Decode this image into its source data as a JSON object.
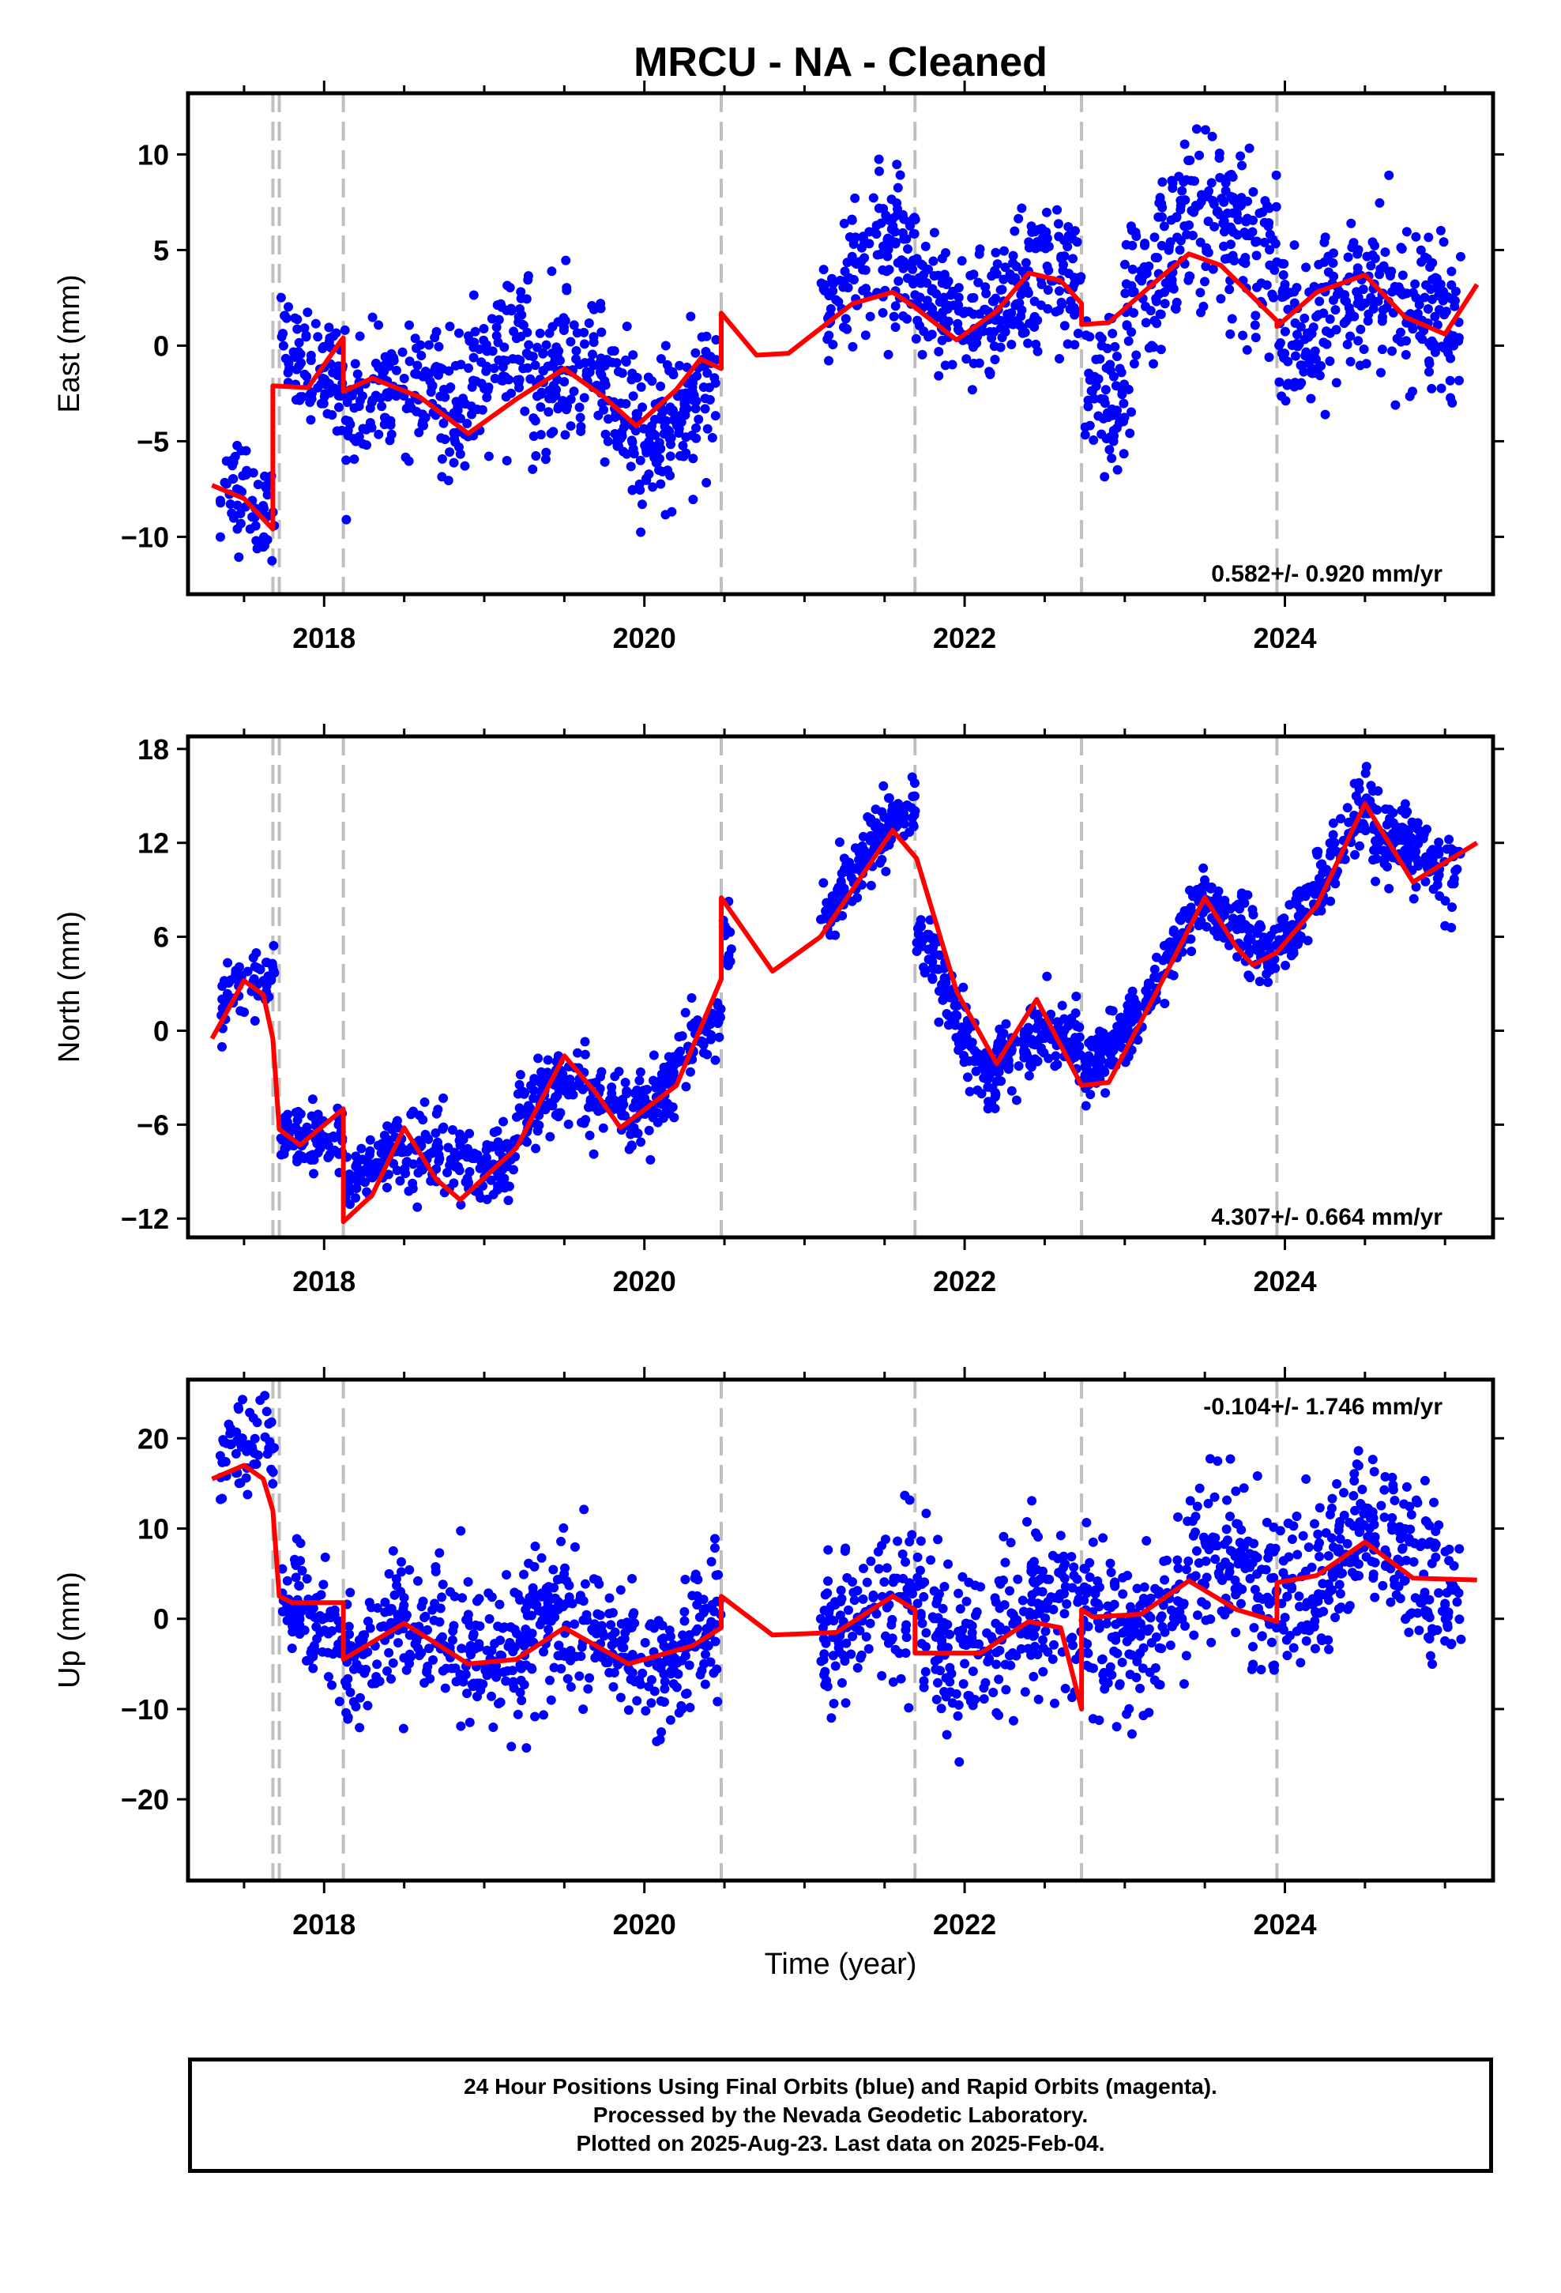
{
  "colors": {
    "data_points": "#0000ff",
    "model_fit": "#ff0000",
    "break_lines": "#bfbfbf",
    "frame": "#000000"
  },
  "chart_data": {
    "type": "scatter",
    "title": "MRCU  - NA - Cleaned",
    "xlabel": "Time (year)",
    "x_ticks": [
      "2018",
      "2020",
      "2022",
      "2024"
    ],
    "xlim": [
      2017.15,
      2025.3
    ],
    "break_years": [
      2017.68,
      2017.72,
      2018.12,
      2020.48,
      2021.69,
      2022.73,
      2023.95
    ],
    "panels": [
      {
        "name": "East",
        "ylabel": "East (mm)",
        "ylim": [
          -13,
          13.2
        ],
        "y_ticks": [
          -10,
          -5,
          0,
          5,
          10
        ],
        "rate": "0.582+/- 0.920 mm/yr",
        "rate_position": "bottom-right",
        "fit": [
          [
            2017.3,
            -7.3
          ],
          [
            2017.5,
            -8.0
          ],
          [
            2017.68,
            -9.6
          ],
          [
            2017.68,
            -2.1
          ],
          [
            2017.9,
            -2.2
          ],
          [
            2018.1,
            0.2
          ],
          [
            2018.12,
            0.4
          ],
          [
            2018.12,
            -2.4
          ],
          [
            2018.3,
            -1.7
          ],
          [
            2018.6,
            -2.7
          ],
          [
            2018.9,
            -4.6
          ],
          [
            2019.2,
            -2.8
          ],
          [
            2019.5,
            -1.2
          ],
          [
            2019.75,
            -2.7
          ],
          [
            2019.95,
            -4.2
          ],
          [
            2020.2,
            -2.3
          ],
          [
            2020.35,
            -0.7
          ],
          [
            2020.48,
            -1.2
          ],
          [
            2020.48,
            1.7
          ],
          [
            2020.7,
            -0.5
          ],
          [
            2020.9,
            -0.4
          ],
          [
            2021.3,
            2.2
          ],
          [
            2021.55,
            2.8
          ],
          [
            2021.69,
            2.0
          ],
          [
            2021.95,
            0.3
          ],
          [
            2022.2,
            1.8
          ],
          [
            2022.4,
            3.8
          ],
          [
            2022.6,
            3.4
          ],
          [
            2022.73,
            2.2
          ],
          [
            2022.73,
            1.1
          ],
          [
            2022.9,
            1.2
          ],
          [
            2023.2,
            3.4
          ],
          [
            2023.4,
            4.8
          ],
          [
            2023.6,
            4.2
          ],
          [
            2023.95,
            1.3
          ],
          [
            2023.95,
            1.0
          ],
          [
            2024.2,
            2.8
          ],
          [
            2024.5,
            3.7
          ],
          [
            2024.75,
            1.5
          ],
          [
            2025.0,
            0.6
          ],
          [
            2025.2,
            3.2
          ]
        ],
        "segments": [
          {
            "x0": 2017.35,
            "x1": 2017.69,
            "base": -8.0,
            "slope": -4.5,
            "noise": 1.8,
            "n": 60
          },
          {
            "x0": 2017.73,
            "x1": 2018.12,
            "base": -0.8,
            "slope": 1.0,
            "noise": 1.7,
            "n": 90
          },
          {
            "x0": 2018.13,
            "x1": 2018.9,
            "base": -2.5,
            "slope": -1.6,
            "noise": 2.0,
            "n": 170
          },
          {
            "x0": 2018.9,
            "x1": 2019.3,
            "base": -0.5,
            "slope": 4.0,
            "noise": 2.3,
            "n": 90
          },
          {
            "x0": 2019.3,
            "x1": 2020.45,
            "base": -3.0,
            "slope": 0.0,
            "noise": 2.4,
            "n": 320
          },
          {
            "x0": 2021.1,
            "x1": 2021.7,
            "base": 3.8,
            "slope": -0.5,
            "noise": 2.4,
            "n": 150
          },
          {
            "x0": 2021.7,
            "x1": 2022.73,
            "base": 2.2,
            "slope": 0.5,
            "noise": 2.2,
            "n": 260
          },
          {
            "x0": 2022.74,
            "x1": 2023.0,
            "base": -2.8,
            "slope": 3.0,
            "noise": 2.6,
            "n": 70
          },
          {
            "x0": 2023.0,
            "x1": 2023.95,
            "base": 4.5,
            "slope": 1.0,
            "noise": 2.8,
            "n": 240
          },
          {
            "x0": 2023.96,
            "x1": 2025.1,
            "base": 2.0,
            "slope": 0.0,
            "noise": 2.6,
            "n": 280
          }
        ]
      },
      {
        "name": "North",
        "ylabel": "North (mm)",
        "ylim": [
          -13.2,
          18.8
        ],
        "y_ticks": [
          -12,
          -6,
          0,
          6,
          12,
          18
        ],
        "rate": "4.307+/- 0.664 mm/yr",
        "rate_position": "bottom-right",
        "fit": [
          [
            2017.3,
            -0.5
          ],
          [
            2017.5,
            3.2
          ],
          [
            2017.62,
            2.3
          ],
          [
            2017.68,
            -0.5
          ],
          [
            2017.72,
            -6.3
          ],
          [
            2017.85,
            -7.3
          ],
          [
            2018.12,
            -5.0
          ],
          [
            2018.12,
            -12.2
          ],
          [
            2018.3,
            -10.5
          ],
          [
            2018.5,
            -6.2
          ],
          [
            2018.7,
            -9.5
          ],
          [
            2018.85,
            -10.8
          ],
          [
            2019.2,
            -7.5
          ],
          [
            2019.5,
            -1.6
          ],
          [
            2019.7,
            -4.0
          ],
          [
            2019.85,
            -6.2
          ],
          [
            2020.2,
            -3.5
          ],
          [
            2020.48,
            3.3
          ],
          [
            2020.48,
            8.5
          ],
          [
            2020.8,
            3.8
          ],
          [
            2021.1,
            6.0
          ],
          [
            2021.55,
            12.8
          ],
          [
            2021.7,
            11.0
          ],
          [
            2021.95,
            2.5
          ],
          [
            2022.2,
            -2.1
          ],
          [
            2022.45,
            2.0
          ],
          [
            2022.73,
            -3.5
          ],
          [
            2022.9,
            -3.3
          ],
          [
            2023.2,
            2.5
          ],
          [
            2023.5,
            8.5
          ],
          [
            2023.7,
            5.3
          ],
          [
            2023.8,
            4.2
          ],
          [
            2023.95,
            5.0
          ],
          [
            2024.2,
            8.0
          ],
          [
            2024.5,
            14.5
          ],
          [
            2024.8,
            9.5
          ],
          [
            2025.2,
            12.0
          ]
        ],
        "segments": [
          {
            "x0": 2017.35,
            "x1": 2017.69,
            "base": 1.5,
            "slope": 3.0,
            "noise": 1.5,
            "n": 60
          },
          {
            "x0": 2017.73,
            "x1": 2018.12,
            "base": -7.0,
            "slope": 3.0,
            "noise": 1.3,
            "n": 90
          },
          {
            "x0": 2018.13,
            "x1": 2019.2,
            "base": -9.0,
            "slope": 1.0,
            "noise": 1.5,
            "n": 240
          },
          {
            "x0": 2019.2,
            "x1": 2019.9,
            "base": -4.5,
            "slope": 0.0,
            "noise": 1.5,
            "n": 160
          },
          {
            "x0": 2019.9,
            "x1": 2020.48,
            "base": -5.0,
            "slope": 10.0,
            "noise": 1.4,
            "n": 130
          },
          {
            "x0": 2020.49,
            "x1": 2020.55,
            "base": 5.5,
            "slope": 0.0,
            "noise": 1.5,
            "n": 12
          },
          {
            "x0": 2021.1,
            "x1": 2021.7,
            "base": 8.0,
            "slope": 10.0,
            "noise": 1.5,
            "n": 150
          },
          {
            "x0": 2021.7,
            "x1": 2022.2,
            "base": 6.0,
            "slope": -18.0,
            "noise": 1.3,
            "n": 130
          },
          {
            "x0": 2022.2,
            "x1": 2022.73,
            "base": -1.5,
            "slope": 0.5,
            "noise": 1.4,
            "n": 130
          },
          {
            "x0": 2022.74,
            "x1": 2023.5,
            "base": -3.0,
            "slope": 14.5,
            "noise": 1.3,
            "n": 190
          },
          {
            "x0": 2023.5,
            "x1": 2023.95,
            "base": 7.0,
            "slope": -4.0,
            "noise": 1.3,
            "n": 110
          },
          {
            "x0": 2023.96,
            "x1": 2024.55,
            "base": 6.0,
            "slope": 14.0,
            "noise": 1.4,
            "n": 150
          },
          {
            "x0": 2024.55,
            "x1": 2025.1,
            "base": 11.5,
            "slope": 0.0,
            "noise": 1.6,
            "n": 140
          }
        ]
      },
      {
        "name": "Up",
        "ylabel": "Up (mm)",
        "ylim": [
          -29,
          26.5
        ],
        "y_ticks": [
          -20,
          -10,
          0,
          10,
          20
        ],
        "rate": "-0.104+/- 1.746 mm/yr",
        "rate_position": "top-right",
        "fit": [
          [
            2017.3,
            15.5
          ],
          [
            2017.5,
            17.0
          ],
          [
            2017.62,
            15.5
          ],
          [
            2017.68,
            12.0
          ],
          [
            2017.72,
            2.5
          ],
          [
            2017.8,
            1.8
          ],
          [
            2018.12,
            1.8
          ],
          [
            2018.12,
            -4.5
          ],
          [
            2018.5,
            -0.5
          ],
          [
            2018.9,
            -5.0
          ],
          [
            2019.2,
            -4.5
          ],
          [
            2019.5,
            -1.0
          ],
          [
            2019.9,
            -5.0
          ],
          [
            2020.3,
            -3.0
          ],
          [
            2020.48,
            -1.0
          ],
          [
            2020.48,
            2.5
          ],
          [
            2020.8,
            -1.8
          ],
          [
            2021.2,
            -1.5
          ],
          [
            2021.55,
            2.5
          ],
          [
            2021.69,
            1.0
          ],
          [
            2021.69,
            -3.8
          ],
          [
            2022.1,
            -3.8
          ],
          [
            2022.4,
            -0.3
          ],
          [
            2022.6,
            -1.0
          ],
          [
            2022.73,
            -10.0
          ],
          [
            2022.73,
            1.0
          ],
          [
            2022.8,
            0.2
          ],
          [
            2023.1,
            0.5
          ],
          [
            2023.4,
            4.2
          ],
          [
            2023.7,
            1.0
          ],
          [
            2023.95,
            -0.3
          ],
          [
            2023.95,
            4.0
          ],
          [
            2024.2,
            4.8
          ],
          [
            2024.5,
            8.5
          ],
          [
            2024.8,
            4.5
          ],
          [
            2025.2,
            4.3
          ]
        ],
        "segments": [
          {
            "x0": 2017.35,
            "x1": 2017.69,
            "base": 16.0,
            "slope": 8.0,
            "noise": 3.5,
            "n": 60
          },
          {
            "x0": 2017.73,
            "x1": 2018.12,
            "base": 2.0,
            "slope": -4.0,
            "noise": 4.0,
            "n": 90
          },
          {
            "x0": 2018.13,
            "x1": 2020.48,
            "base": -2.5,
            "slope": 0.0,
            "noise": 5.0,
            "n": 560
          },
          {
            "x0": 2021.1,
            "x1": 2022.73,
            "base": 0.0,
            "slope": -1.0,
            "noise": 5.5,
            "n": 380
          },
          {
            "x0": 2022.74,
            "x1": 2023.95,
            "base": 0.0,
            "slope": 4.0,
            "noise": 5.5,
            "n": 300
          },
          {
            "x0": 2023.96,
            "x1": 2025.1,
            "base": 6.0,
            "slope": 0.0,
            "noise": 5.5,
            "n": 280
          }
        ]
      }
    ]
  },
  "footer": {
    "line1": "24 Hour Positions Using Final Orbits (blue) and Rapid Orbits (magenta).",
    "line2": "Processed by the Nevada Geodetic Laboratory.",
    "line3": "Plotted on 2025-Aug-23. Last data on 2025-Feb-04."
  }
}
